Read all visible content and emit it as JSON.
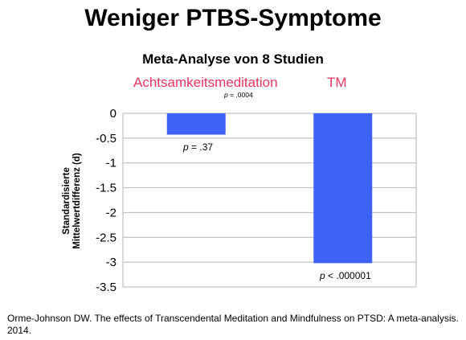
{
  "title": "Weniger PTBS-Symptome",
  "subtitle": "Meta-Analyse von 8 Studien",
  "source": "Orme-Johnson DW. The effects of Transcendental Meditation and Mindfulness on PTSD: A meta-analysis. 2014.",
  "colors": {
    "bar": "#3c63f5",
    "category_label": "#e8345f",
    "grid": "#b4b4b4"
  },
  "chart_data": {
    "type": "bar",
    "title": "Weniger PTBS-Symptome",
    "subtitle": "Meta-Analyse von 8 Studien",
    "categories": [
      "Achtsamkeitsmeditation",
      "TM"
    ],
    "values": [
      -0.43,
      -3.02
    ],
    "ylabel_line1": "Standardisierte",
    "ylabel_line2": "Mittelwertdifferenz (d)",
    "ylim": [
      -3.5,
      0
    ],
    "yticks": [
      "0",
      "-0.5",
      "-1",
      "-1.5",
      "-2",
      "-2.5",
      "-3",
      "-3.5"
    ],
    "grid": true,
    "bar_labels": [
      {
        "p": "p",
        "rest": " = .37"
      },
      {
        "p": "p",
        "rest": " < .000001"
      }
    ],
    "comparison_label": {
      "p": "p",
      "rest": " = .0004"
    }
  }
}
